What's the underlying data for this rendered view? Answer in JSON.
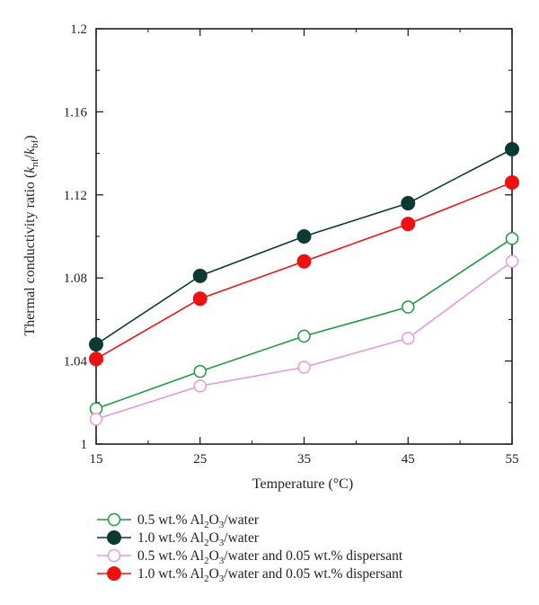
{
  "chart_data": {
    "type": "line",
    "xlabel": "Temperature (°C)",
    "ylabel": "Thermal conductivity ratio (knf/kbf)",
    "xlim": [
      15,
      55
    ],
    "ylim": [
      1,
      1.2
    ],
    "x": [
      15,
      25,
      35,
      45,
      55
    ],
    "x_ticks": [
      "15",
      "25",
      "35",
      "45",
      "55"
    ],
    "y_ticks": [
      "1",
      "1.04",
      "1.08",
      "1.12",
      "1.16",
      "1.2"
    ],
    "grid": false,
    "legend_position": "bottom",
    "series": [
      {
        "name": "0.5 wt.% Al2O3/water",
        "values": [
          1.017,
          1.035,
          1.052,
          1.066,
          1.099
        ],
        "color": "#1e9a3e",
        "marker": "open-circle"
      },
      {
        "name": "1.0 wt.% Al2O3/water",
        "values": [
          1.048,
          1.081,
          1.1,
          1.116,
          1.142
        ],
        "color": "#0b3a33",
        "marker": "filled-circle"
      },
      {
        "name": "0.5 wt.% Al2O3/water and 0.05 wt.% dispersant",
        "values": [
          1.012,
          1.028,
          1.037,
          1.051,
          1.088
        ],
        "color": "#e89ad6",
        "marker": "open-circle"
      },
      {
        "name": "1.0 wt.% Al2O3/water and 0.05 wt.% dispersant",
        "values": [
          1.041,
          1.07,
          1.088,
          1.106,
          1.126
        ],
        "color": "#ee1111",
        "marker": "filled-circle"
      }
    ],
    "legend": [
      {
        "prefix": "0.5 wt.% Al",
        "sub1": "2",
        "mid": "O",
        "sub2": "3",
        "suffix": "/water"
      },
      {
        "prefix": "1.0 wt.% Al",
        "sub1": "2",
        "mid": "O",
        "sub2": "3",
        "suffix": "/water"
      },
      {
        "prefix": "0.5 wt.% Al",
        "sub1": "2",
        "mid": "O",
        "sub2": "3",
        "suffix": "/water and 0.05 wt.% dispersant"
      },
      {
        "prefix": "1.0 wt.% Al",
        "sub1": "2",
        "mid": "O",
        "sub2": "3",
        "suffix": "/water and 0.05 wt.% dispersant"
      }
    ],
    "ylabel_parts": {
      "main": "Thermal conductivity ratio (",
      "k1": "k",
      "sub1": "nf",
      "slash": "/",
      "k2": "k",
      "sub2": "bf",
      "close": ")"
    }
  }
}
